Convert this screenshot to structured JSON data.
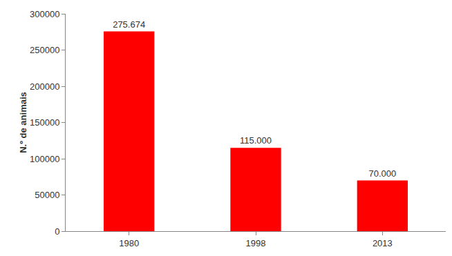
{
  "chart_data": {
    "type": "bar",
    "y_label": "N.º de animais",
    "categories": [
      "1980",
      "1998",
      "2013"
    ],
    "values": [
      275674,
      115000,
      70000
    ],
    "value_labels": [
      "275.674",
      "115.000",
      "70.000"
    ],
    "data_labels": true,
    "color": "#ff0000",
    "ylim": [
      0,
      300000
    ],
    "yticks": [
      0,
      50000,
      100000,
      150000,
      200000,
      250000,
      300000
    ],
    "grid": false
  }
}
